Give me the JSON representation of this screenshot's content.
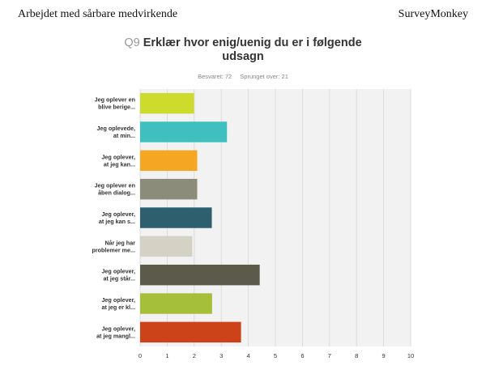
{
  "header": {
    "left": "Arbejdet med sårbare medvirkende",
    "right": "SurveyMonkey"
  },
  "question": {
    "number": "Q9",
    "text_line1": "Erklær hvor enig/uenig du er i følgende",
    "text_line2": "udsagn"
  },
  "stats": {
    "answered": "Besvaret: 72",
    "skipped": "Sprunget over: 21"
  },
  "chart_data": {
    "type": "bar",
    "orientation": "horizontal",
    "categories": [
      [
        "Jeg oplever en",
        "blive berige..."
      ],
      [
        "Jeg oplevede,",
        "at min..."
      ],
      [
        "Jeg oplever,",
        "at jeg kan..."
      ],
      [
        "Jeg oplever en",
        "åben dialog..."
      ],
      [
        "Jeg oplever,",
        "at jeg kan s..."
      ],
      [
        "Når jeg har",
        "problemer me..."
      ],
      [
        "Jeg oplever,",
        "at jeg står..."
      ],
      [
        "Jeg oplever,",
        "at jeg er kl..."
      ],
      [
        "Jeg oplever,",
        "at jeg mangl..."
      ]
    ],
    "values": [
      1.99,
      3.21,
      2.11,
      2.11,
      2.65,
      1.93,
      4.42,
      2.66,
      3.73
    ],
    "colors": [
      "#cddb2c",
      "#3fbfbf",
      "#f5a623",
      "#8c8c7a",
      "#2e5f6e",
      "#d4d2c4",
      "#5c5b4b",
      "#a6bf3a",
      "#cc4319"
    ],
    "xlim": [
      0,
      10
    ],
    "xticks": [
      0,
      1,
      2,
      3,
      4,
      5,
      6,
      7,
      8,
      9,
      10
    ],
    "grid": true,
    "plot_background": "#f2f2f2"
  }
}
